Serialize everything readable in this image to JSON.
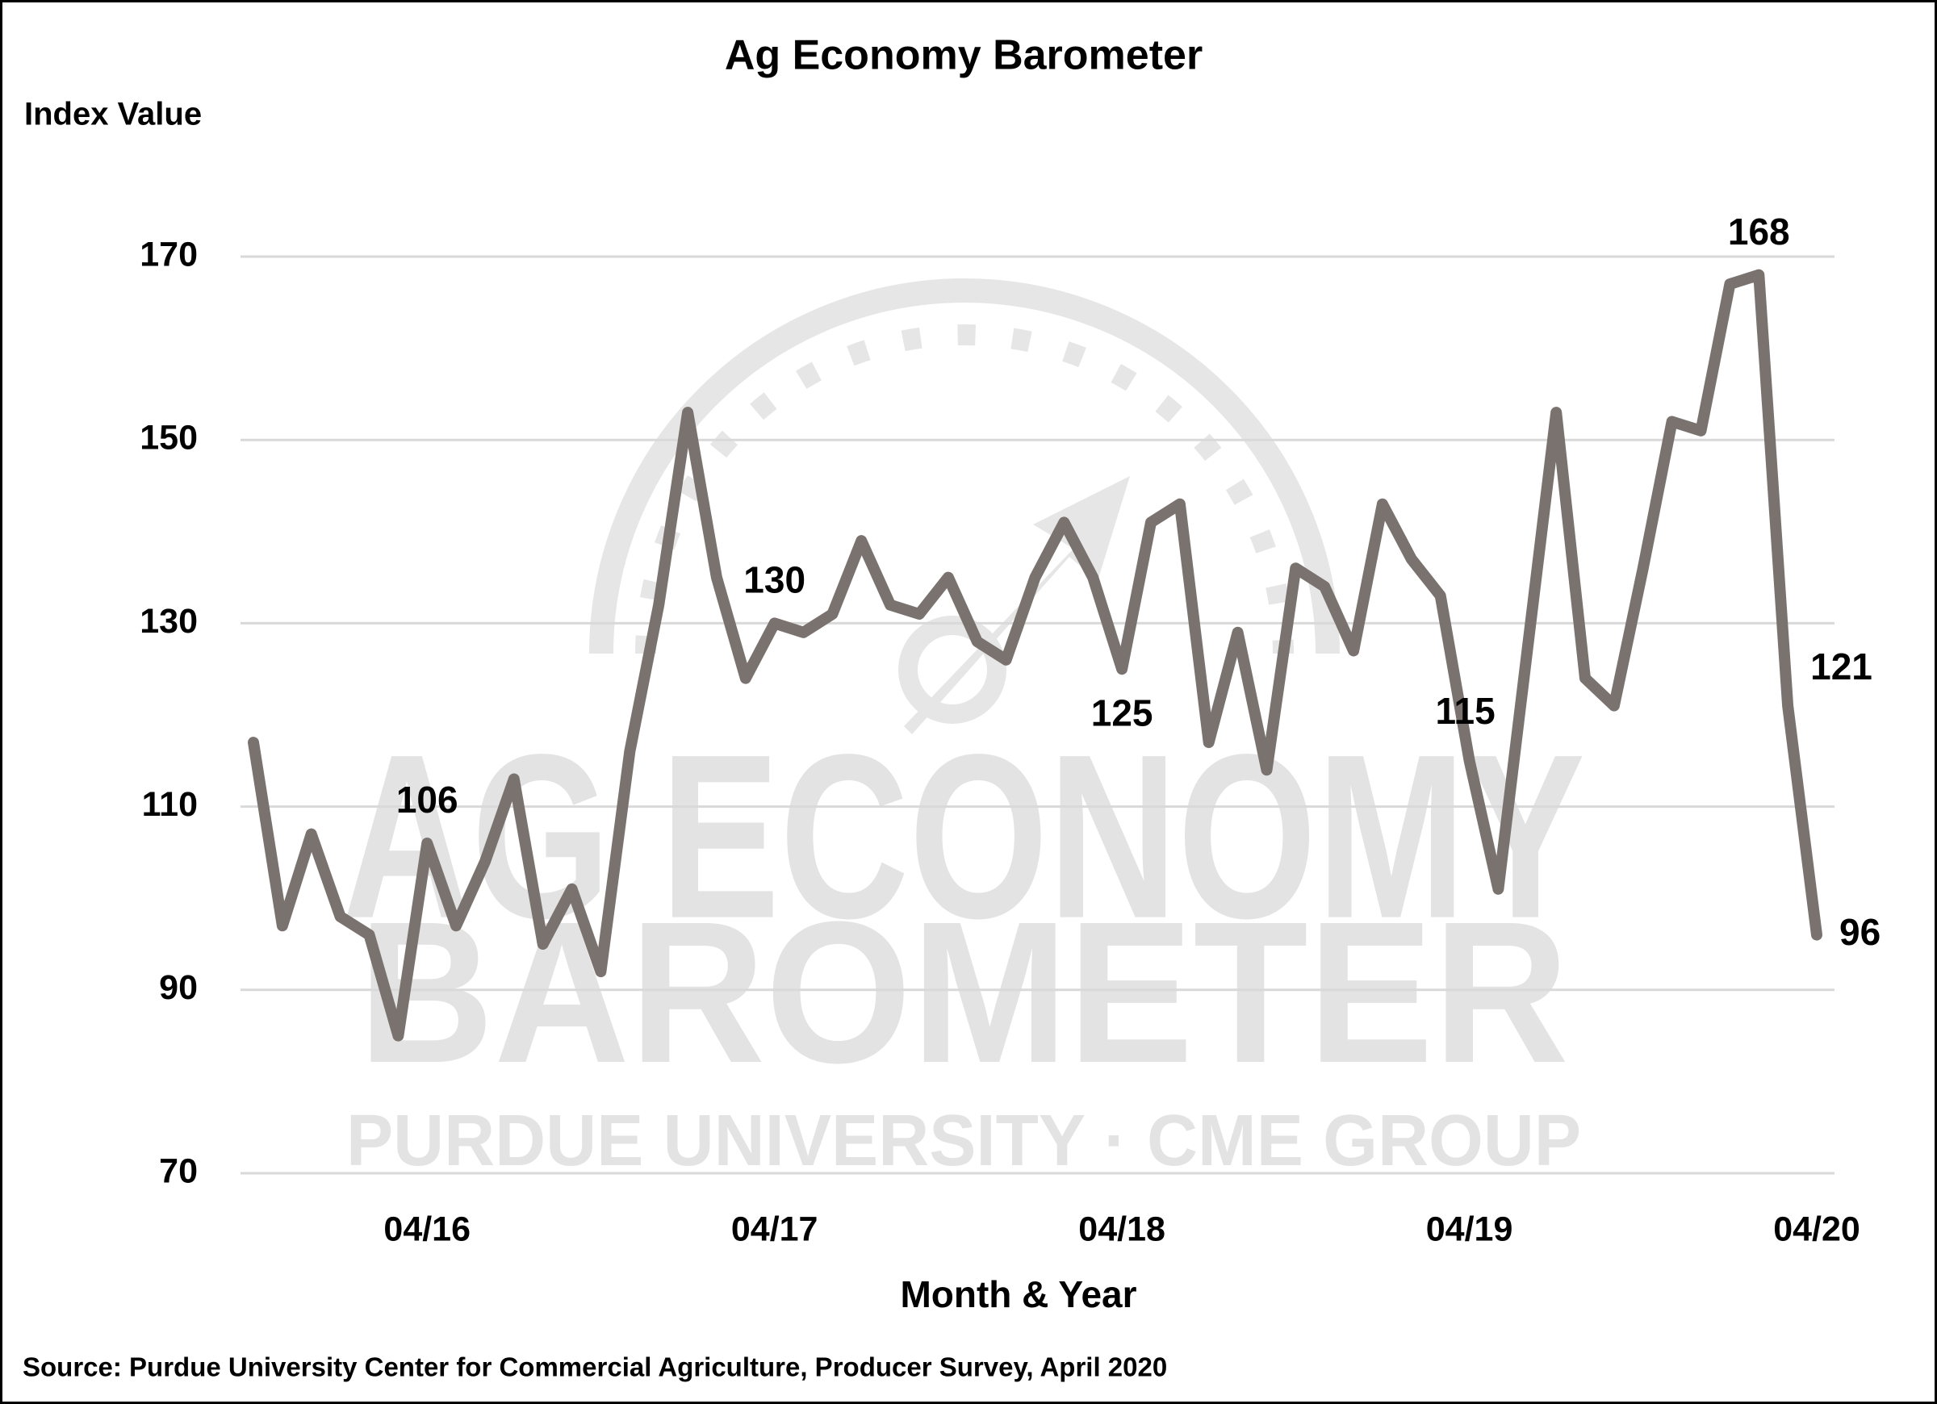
{
  "chart_data": {
    "type": "line",
    "title": "Ag Economy Barometer",
    "y_axis_label": "Index Value",
    "x_axis_label": "Month & Year",
    "source": "Source: Purdue University Center for Commercial Agriculture, Producer Survey, April 2020",
    "watermark": {
      "line1": "AG ECONOMY",
      "line2": "BAROMETER",
      "line3": "PURDUE UNIVERSITY · CME GROUP"
    },
    "categories": [
      null,
      null,
      null,
      null,
      null,
      null,
      "04/16",
      null,
      null,
      null,
      null,
      null,
      null,
      null,
      null,
      null,
      null,
      null,
      "04/17",
      null,
      null,
      null,
      null,
      null,
      null,
      null,
      null,
      null,
      null,
      null,
      "04/18",
      null,
      null,
      null,
      null,
      null,
      null,
      null,
      null,
      null,
      null,
      null,
      "04/19",
      null,
      null,
      null,
      null,
      null,
      null,
      null,
      null,
      null,
      null,
      null,
      "04/20"
    ],
    "values": [
      117,
      97,
      107,
      98,
      96,
      85,
      106,
      97,
      104,
      113,
      95,
      101,
      92,
      116,
      132,
      153,
      135,
      124,
      130,
      129,
      131,
      139,
      132,
      131,
      135,
      128,
      126,
      135,
      141,
      135,
      125,
      141,
      143,
      117,
      129,
      114,
      136,
      134,
      127,
      143,
      137,
      133,
      115,
      101,
      127,
      153,
      124,
      121,
      136,
      152,
      151,
      167,
      168,
      121,
      96
    ],
    "value_labels": [
      null,
      null,
      null,
      null,
      null,
      null,
      "106",
      null,
      null,
      null,
      null,
      null,
      null,
      null,
      null,
      null,
      null,
      null,
      "130",
      null,
      null,
      null,
      null,
      null,
      null,
      null,
      null,
      null,
      null,
      null,
      "125",
      null,
      null,
      null,
      null,
      null,
      null,
      null,
      null,
      null,
      null,
      null,
      "115",
      null,
      null,
      null,
      null,
      null,
      null,
      null,
      null,
      null,
      "168",
      "121",
      "96"
    ],
    "color": "#7a726e",
    "ylim": [
      70,
      170
    ],
    "yticks": [
      70,
      90,
      110,
      130,
      150,
      170
    ],
    "grid": true
  }
}
